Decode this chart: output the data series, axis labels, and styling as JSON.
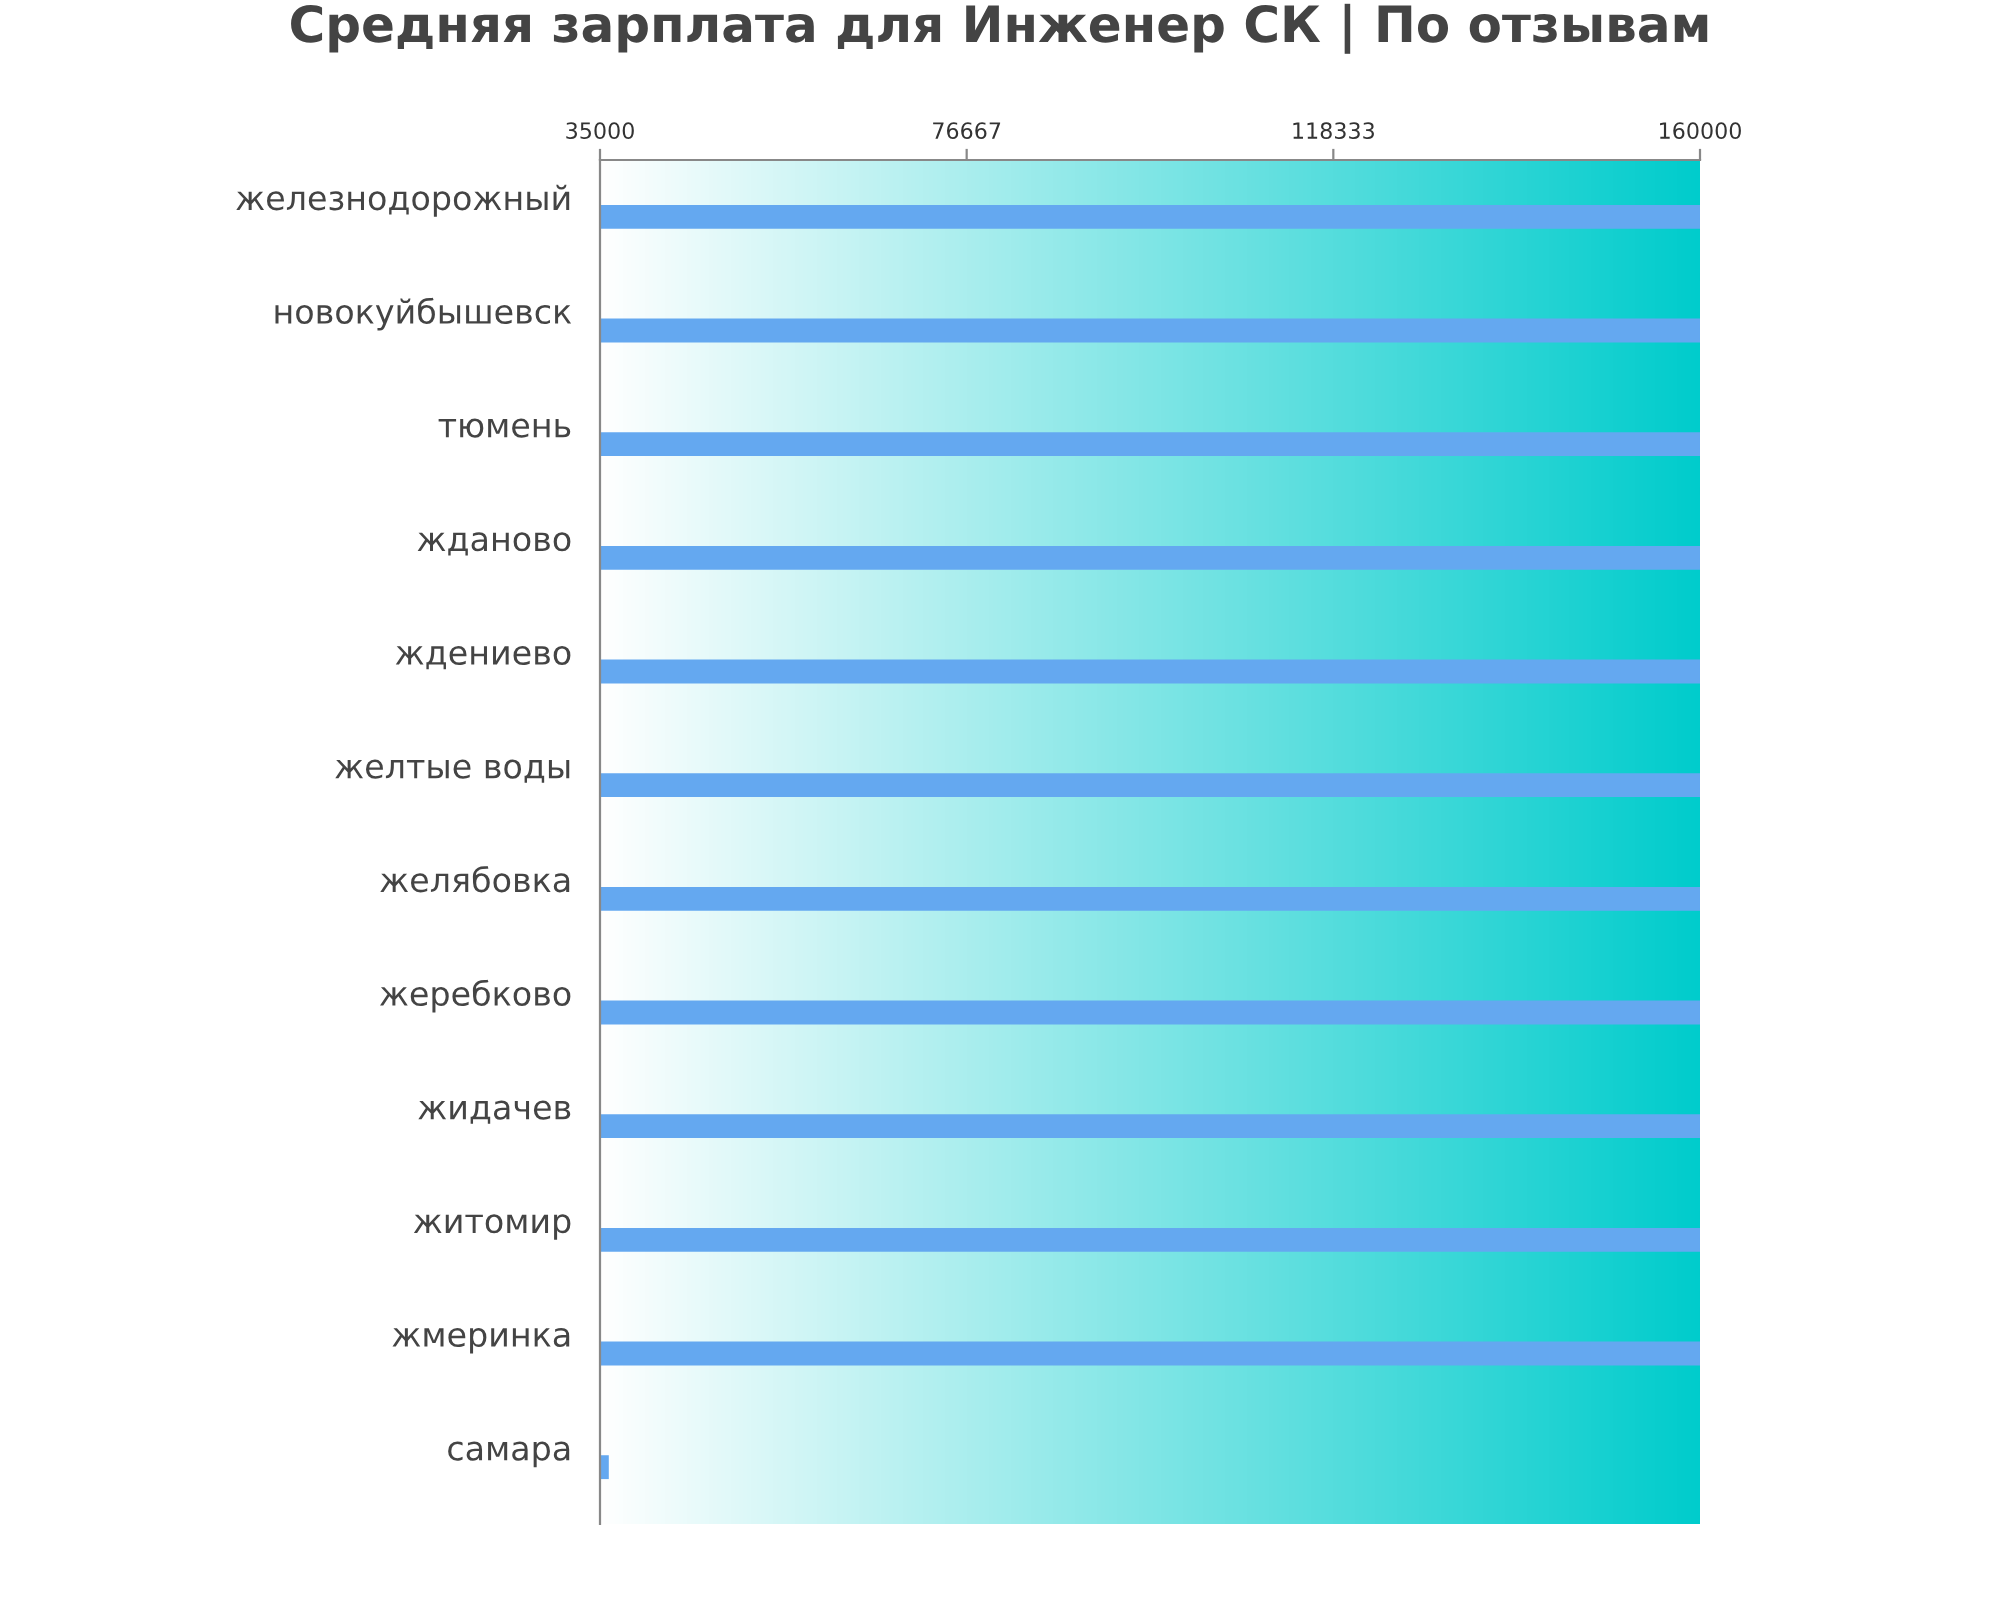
{
  "chart_data": {
    "type": "bar",
    "orientation": "horizontal",
    "title": "Средняя зарплата для Инженер СК | По отзывам",
    "categories": [
      "железнодорожный",
      "новокуйбышевск",
      "тюмень",
      "жданово",
      "ждениево",
      "желтые воды",
      "желябовка",
      "жеребково",
      "жидачев",
      "житомир",
      "жмеринка",
      "самара"
    ],
    "values": [
      160000,
      160000,
      160000,
      160000,
      160000,
      160000,
      160000,
      160000,
      160000,
      160000,
      160000,
      36000
    ],
    "color": "#64a8f0",
    "xlim": [
      35000,
      160000
    ],
    "xticks": [
      35000,
      76667,
      118333,
      160000
    ],
    "grid": false,
    "legend": false
  }
}
